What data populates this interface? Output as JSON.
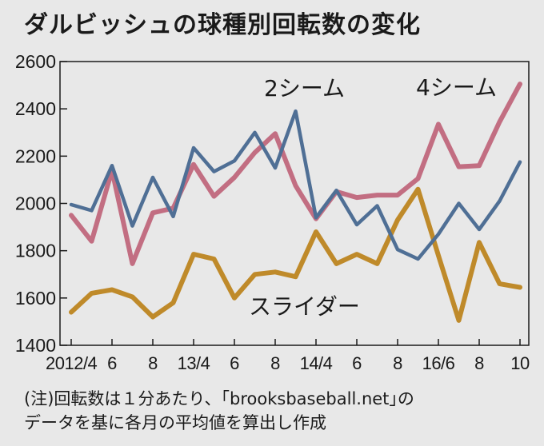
{
  "chart_data": {
    "type": "line",
    "title": "ダルビッシュの球種別回転数の変化",
    "x_tick_labels": [
      "2012/4",
      "6",
      "8",
      "13/4",
      "6",
      "8",
      "14/4",
      "6",
      "8",
      "16/6",
      "8",
      "10"
    ],
    "ylim": [
      1400,
      2600
    ],
    "y_ticks": [
      1400,
      1600,
      1800,
      2000,
      2200,
      2400,
      2600
    ],
    "grid": false,
    "series": [
      {
        "name": "2シーム",
        "color": "#4f6f95",
        "values": [
          1995,
          1970,
          2160,
          1905,
          2110,
          1945,
          2235,
          2135,
          2180,
          2300,
          2150,
          2390,
          1940,
          2055,
          1910,
          1990,
          1805,
          1765,
          1870,
          2000,
          1890,
          2010,
          2175
        ]
      },
      {
        "name": "4シーム",
        "color": "#c26e82",
        "values": [
          1950,
          1840,
          2140,
          1745,
          1960,
          1980,
          2165,
          2030,
          2110,
          2215,
          2295,
          2075,
          1935,
          2050,
          2025,
          2035,
          2035,
          2105,
          2335,
          2155,
          2160,
          2345,
          2505
        ]
      },
      {
        "name": "スライダー",
        "color": "#bf8a2a",
        "values": [
          1540,
          1620,
          1635,
          1605,
          1520,
          1580,
          1785,
          1765,
          1600,
          1700,
          1710,
          1690,
          1880,
          1745,
          1785,
          1745,
          1930,
          2060,
          1780,
          1505,
          1835,
          1660,
          1645
        ]
      }
    ],
    "note_lines": [
      "(注)回転数は１分あたり、｢brooksbaseball.net｣の",
      "データを基に各月の平均値を算出し作成"
    ]
  }
}
